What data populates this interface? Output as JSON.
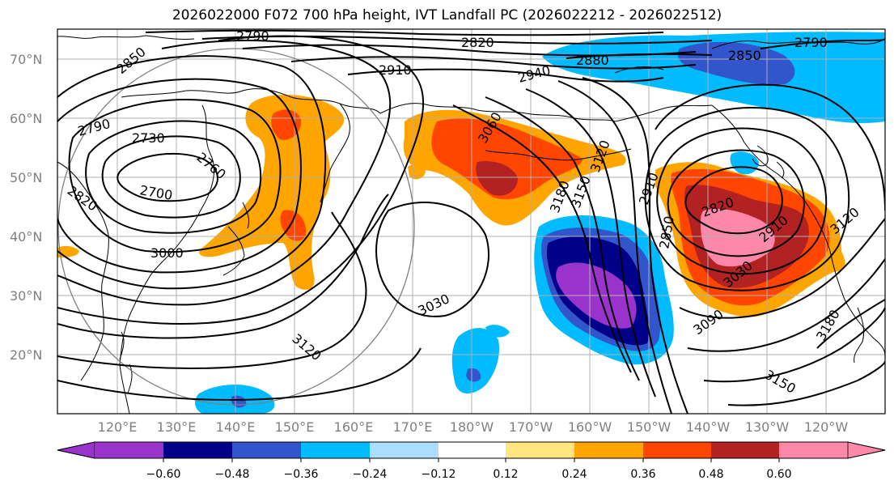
{
  "title": "2026022000 F072 700 hPa height, IVT Landfall PC (2026022212 - 2026022512)",
  "map": {
    "lat_labels": [
      "70°N",
      "60°N",
      "50°N",
      "40°N",
      "30°N",
      "20°N"
    ],
    "lon_labels": [
      "120°E",
      "130°E",
      "140°E",
      "150°E",
      "160°E",
      "170°E",
      "180°W",
      "170°W",
      "160°W",
      "150°W",
      "140°W",
      "130°W",
      "120°W"
    ],
    "contour_labels": [
      "2790",
      "2820",
      "2850",
      "2910",
      "2880",
      "2940",
      "2850",
      "2790",
      "2790",
      "2730",
      "2760",
      "2820",
      "2700",
      "3060",
      "3120",
      "3180",
      "3150",
      "2910",
      "2820",
      "2850",
      "2910",
      "3120",
      "3000",
      "3030",
      "3030",
      "3090",
      "3120",
      "3180",
      "3150"
    ],
    "colors": {
      "coast": "#000000",
      "grid": "#b0b0b0",
      "contour": "#000000",
      "circle": "#808080"
    }
  },
  "colorbar": {
    "colors": [
      "#9933cc",
      "#000088",
      "#3355cc",
      "#00bbff",
      "#aaddff",
      "#ffffff",
      "#ffe680",
      "#ffa500",
      "#ff4500",
      "#b22222",
      "#ff88aa"
    ],
    "tick_labels": [
      "−0.60",
      "−0.48",
      "−0.36",
      "−0.24",
      "−0.12",
      "0.12",
      "0.24",
      "0.36",
      "0.48",
      "0.60"
    ]
  }
}
